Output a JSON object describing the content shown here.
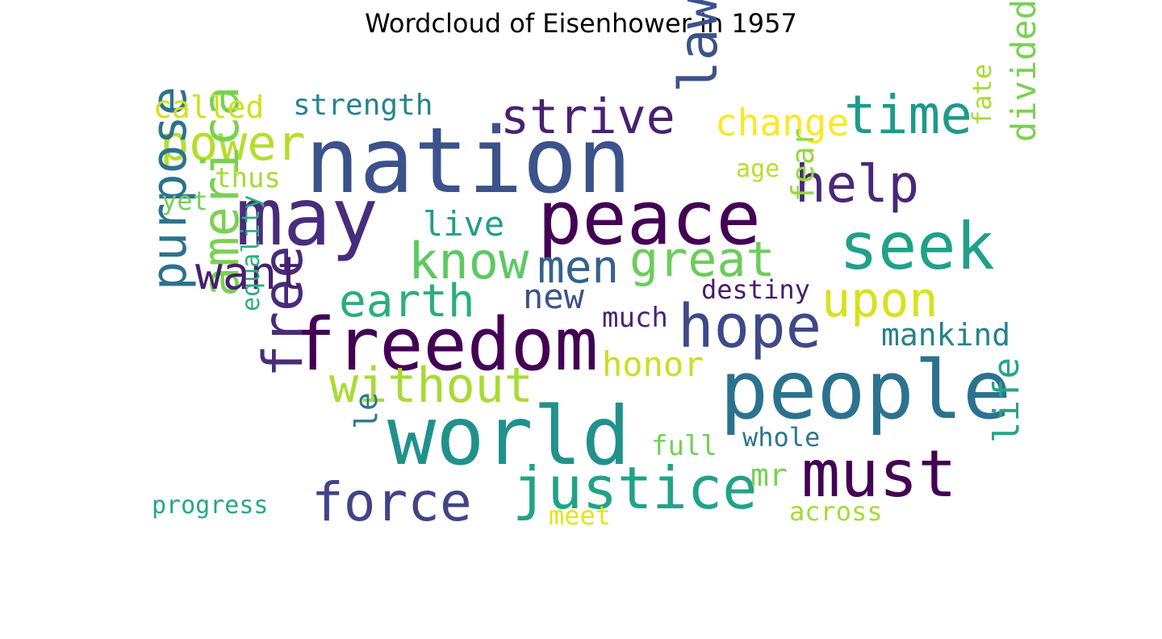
{
  "chart_data": {
    "type": "wordcloud",
    "title": "Wordcloud of Eisenhower in 1957",
    "words": [
      {
        "text": "nation",
        "color": "#3b528b"
      },
      {
        "text": "may",
        "color": "#472d7b"
      },
      {
        "text": "peace",
        "color": "#440154"
      },
      {
        "text": "freedom",
        "color": "#440154"
      },
      {
        "text": "people",
        "color": "#2c728e"
      },
      {
        "text": "world",
        "color": "#21918c"
      },
      {
        "text": "seek",
        "color": "#1fa187"
      },
      {
        "text": "must",
        "color": "#440154"
      },
      {
        "text": "hope",
        "color": "#3e4989"
      },
      {
        "text": "justice",
        "color": "#20a386"
      },
      {
        "text": "strive",
        "color": "#482173"
      },
      {
        "text": "law",
        "color": "#3b528b"
      },
      {
        "text": "time",
        "color": "#1f9a8a"
      },
      {
        "text": "help",
        "color": "#482878"
      },
      {
        "text": "power",
        "color": "#b5de2b"
      },
      {
        "text": "know",
        "color": "#5ec962"
      },
      {
        "text": "men",
        "color": "#33638d"
      },
      {
        "text": "great",
        "color": "#6ccd5a"
      },
      {
        "text": "purpose",
        "color": "#2c728e"
      },
      {
        "text": "america",
        "color": "#7ad151"
      },
      {
        "text": "free",
        "color": "#472c7a"
      },
      {
        "text": "force",
        "color": "#414487"
      },
      {
        "text": "earth",
        "color": "#29af7f"
      },
      {
        "text": "without",
        "color": "#a8db34"
      },
      {
        "text": "want",
        "color": "#481f70"
      },
      {
        "text": "upon",
        "color": "#d8e219"
      },
      {
        "text": "change",
        "color": "#fde725"
      },
      {
        "text": "divided",
        "color": "#7ad151"
      },
      {
        "text": "mankind",
        "color": "#26828e"
      },
      {
        "text": "honor",
        "color": "#c8e020"
      },
      {
        "text": "life",
        "color": "#22a785"
      },
      {
        "text": "live",
        "color": "#1f9e89"
      },
      {
        "text": "new",
        "color": "#3b528b"
      },
      {
        "text": "called",
        "color": "#d0e11c"
      },
      {
        "text": "strength",
        "color": "#25848e"
      },
      {
        "text": "fear",
        "color": "#95d840"
      },
      {
        "text": "fate",
        "color": "#a8db34"
      },
      {
        "text": "mr",
        "color": "#7ad151"
      },
      {
        "text": "le",
        "color": "#2a788e"
      },
      {
        "text": "destiny",
        "color": "#481a6c"
      },
      {
        "text": "much",
        "color": "#482475"
      },
      {
        "text": "equality",
        "color": "#29af7f"
      },
      {
        "text": "whole",
        "color": "#2a788e"
      },
      {
        "text": "full",
        "color": "#73d056"
      },
      {
        "text": "age",
        "color": "#b8de29"
      },
      {
        "text": "thus",
        "color": "#a5db36"
      },
      {
        "text": "yet",
        "color": "#75d054"
      },
      {
        "text": "progress",
        "color": "#22a884"
      },
      {
        "text": "across",
        "color": "#a5db36"
      },
      {
        "text": "meet",
        "color": "#e5e419"
      }
    ]
  }
}
